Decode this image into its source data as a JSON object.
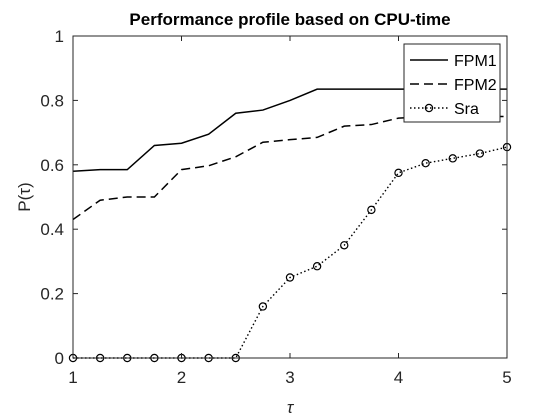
{
  "chart_data": {
    "type": "line",
    "title": "Performance profile based on CPU-time",
    "xlabel": "τ",
    "ylabel": "P(τ)",
    "xlim": [
      1,
      5
    ],
    "ylim": [
      0,
      1
    ],
    "xticks": [
      1,
      2,
      3,
      4,
      5
    ],
    "yticks": [
      0,
      0.2,
      0.4,
      0.6,
      0.8,
      1
    ],
    "ytick_labels": [
      "0",
      "0.2",
      "0.4",
      "0.6",
      "0.8",
      "1"
    ],
    "grid": false,
    "legend_position": "top-right",
    "series": [
      {
        "name": "FPM1",
        "style": "solid",
        "marker": "none",
        "x": [
          1.0,
          1.25,
          1.5,
          1.75,
          2.0,
          2.25,
          2.5,
          2.75,
          3.0,
          3.25,
          3.5,
          3.75,
          4.0,
          4.25,
          4.5,
          4.75,
          5.0
        ],
        "y": [
          0.58,
          0.585,
          0.585,
          0.66,
          0.667,
          0.695,
          0.76,
          0.77,
          0.8,
          0.835,
          0.835,
          0.835,
          0.835,
          0.835,
          0.835,
          0.835,
          0.835
        ]
      },
      {
        "name": "FPM2",
        "style": "dashed",
        "marker": "none",
        "x": [
          1.0,
          1.25,
          1.5,
          1.75,
          2.0,
          2.25,
          2.5,
          2.75,
          3.0,
          3.25,
          3.5,
          3.75,
          4.0,
          4.25,
          4.5,
          4.75,
          5.0
        ],
        "y": [
          0.43,
          0.49,
          0.5,
          0.5,
          0.585,
          0.597,
          0.625,
          0.67,
          0.678,
          0.685,
          0.72,
          0.725,
          0.745,
          0.75,
          0.75,
          0.75,
          0.75
        ]
      },
      {
        "name": "Sra",
        "style": "dotted",
        "marker": "circle",
        "x": [
          1.0,
          1.25,
          1.5,
          1.75,
          2.0,
          2.25,
          2.5,
          2.75,
          3.0,
          3.25,
          3.5,
          3.75,
          4.0,
          4.25,
          4.5,
          4.75,
          5.0
        ],
        "y": [
          0,
          0,
          0,
          0,
          0,
          0,
          0,
          0.16,
          0.25,
          0.285,
          0.35,
          0.46,
          0.575,
          0.605,
          0.62,
          0.635,
          0.655
        ]
      }
    ]
  }
}
